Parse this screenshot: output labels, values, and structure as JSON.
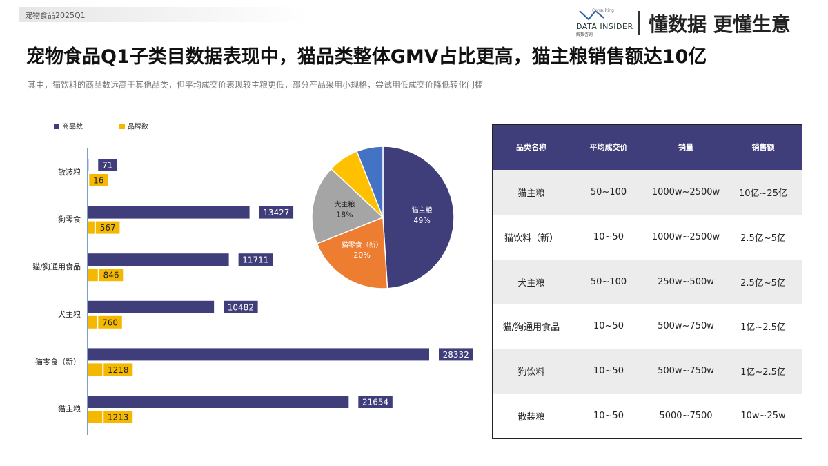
{
  "header": {
    "tag": "宠物食品2025Q1",
    "logo": "DATA INSIDER",
    "logo_sub": "解数咨询",
    "logo_small": "Consulting",
    "slogan": "懂数据 更懂生意"
  },
  "title": "宠物食品Q1子类目数据表现中，猫品类整体GMV占比更高，猫主粮销售额达10亿",
  "subtitle": "其中，猫饮料的商品数远高于其他品类，但平均成交价表现较主粮更低，部分产品采用小规格，尝试用低成交价降低转化门槛",
  "chart_data": [
    {
      "type": "hbar",
      "categories": [
        "散装粮",
        "狗零食",
        "猫/狗通用食品",
        "犬主粮",
        "猫零食（新）",
        "猫主粮"
      ],
      "series": [
        {
          "name": "商品数",
          "color": "#3f3d7a",
          "values": [
            71,
            13427,
            11711,
            10482,
            28332,
            21654
          ]
        },
        {
          "name": "品牌数",
          "color": "#f5b800",
          "values": [
            16,
            567,
            846,
            760,
            1218,
            1213
          ]
        }
      ],
      "legend": "top-left"
    },
    {
      "type": "pie",
      "categories": [
        "猫主粮",
        "猫零食（新）",
        "犬主粮",
        null,
        null
      ],
      "values": [
        49,
        20,
        18,
        7,
        6
      ],
      "value_labels": [
        "49%",
        "20%",
        "18%",
        null,
        null
      ],
      "colors": [
        "#3f3d7a",
        "#ed7d31",
        "#a5a5a5",
        "#ffc000",
        "#4472c4"
      ]
    }
  ],
  "table": {
    "columns": [
      "品类名称",
      "平均成交价",
      "销量",
      "销售额"
    ],
    "rows": [
      [
        "猫主粮",
        "50~100",
        "1000w~2500w",
        "10亿~25亿"
      ],
      [
        "猫饮料（新）",
        "10~50",
        "1000w~2500w",
        "2.5亿~5亿"
      ],
      [
        "犬主粮",
        "50~100",
        "250w~500w",
        "2.5亿~5亿"
      ],
      [
        "猫/狗通用食品",
        "10~50",
        "500w~750w",
        "1亿~2.5亿"
      ],
      [
        "狗饮料",
        "10~50",
        "500w~750w",
        "1亿~2.5亿"
      ],
      [
        "散装粮",
        "10~50",
        "5000~7500",
        "10w~25w"
      ]
    ]
  }
}
